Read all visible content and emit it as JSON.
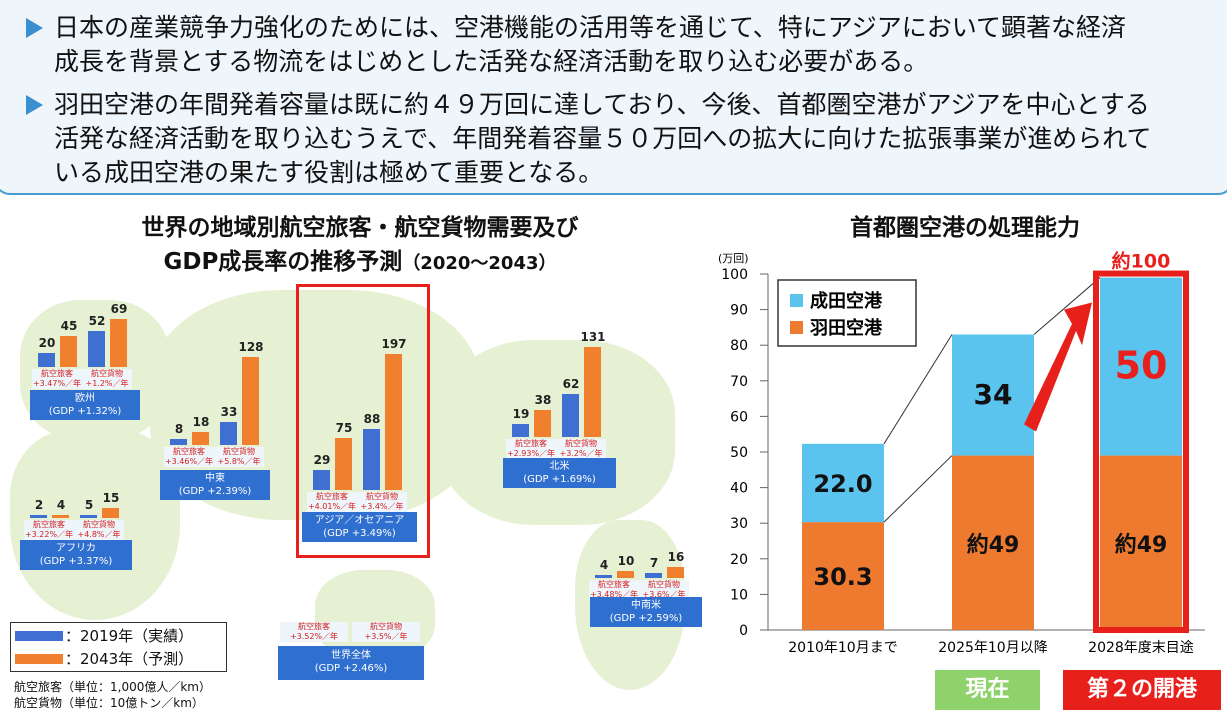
{
  "bullets": [
    {
      "lines": [
        "日本の産業競争力強化のためには、空港機能の活用等を通じて、特にアジアにおいて顕著な経済",
        "成長を背景とする物流をはじめとした活発な経済活動を取り込む必要がある。"
      ]
    },
    {
      "lines": [
        "羽田空港の年間発着容量は既に約４９万回に達しており、今後、首都圏空港がアジアを中心とする",
        "活発な経済活動を取り込むうえで、年間発着容量５０万回への拡大に向けた拡張事業が進められて",
        "いる成田空港の果たす役割は極めて重要となる。"
      ]
    }
  ],
  "colors": {
    "blue": "#3f6fd1",
    "orange": "#f07f2e",
    "narita": "#5bc4ee",
    "haneda": "#ed7a2f",
    "red": "#e8201c",
    "green": "#8fd16a"
  },
  "chart_data": [
    {
      "type": "bar",
      "title": "世界の地域別航空旅客・航空貨物需要及び",
      "title2": "GDP成長率の推移予測",
      "title_range": "（2020〜2043）",
      "legend": [
        {
          "name": "：2019年（実績）",
          "color": "#3f6fd1"
        },
        {
          "name": "：2043年（予測）",
          "color": "#f07f2e"
        }
      ],
      "notes": [
        "航空旅客（単位：1,000億人／km）",
        "航空貨物（単位：10億トン／km）"
      ],
      "regions": [
        {
          "name": "欧州",
          "gdp": "(GDP +1.32%)",
          "passenger": {
            "2019": 20,
            "2043": 45,
            "rate": "航空旅客\n+3.47%／年"
          },
          "cargo": {
            "2019": 52,
            "2043": 69,
            "rate": "航空貨物\n+1.2%／年"
          }
        },
        {
          "name": "中東",
          "gdp": "(GDP +2.39%)",
          "passenger": {
            "2019": 8,
            "2043": 18,
            "rate": "航空旅客\n+3.46%／年"
          },
          "cargo": {
            "2019": 33,
            "2043": 128,
            "rate": "航空貨物\n+5.8%／年"
          }
        },
        {
          "name": "アジア／オセアニア",
          "gdp": "(GDP +3.49%)",
          "passenger": {
            "2019": 29,
            "2043": 75,
            "rate": "航空旅客\n+4.01%／年"
          },
          "cargo": {
            "2019": 88,
            "2043": 197,
            "rate": "航空貨物\n+3.4%／年"
          }
        },
        {
          "name": "北米",
          "gdp": "(GDP +1.69%)",
          "passenger": {
            "2019": 19,
            "2043": 38,
            "rate": "航空旅客\n+2.93%／年"
          },
          "cargo": {
            "2019": 62,
            "2043": 131,
            "rate": "航空貨物\n+3.2%／年"
          }
        },
        {
          "name": "アフリカ",
          "gdp": "(GDP +3.37%)",
          "passenger": {
            "2019": 2,
            "2043": 4,
            "rate": "航空旅客\n+3.22%／年"
          },
          "cargo": {
            "2019": 5,
            "2043": 15,
            "rate": "航空貨物\n+4.8%／年"
          }
        },
        {
          "name": "中南米",
          "gdp": "(GDP +2.59%)",
          "passenger": {
            "2019": 4,
            "2043": 10,
            "rate": "航空旅客\n+3.48%／年"
          },
          "cargo": {
            "2019": 7,
            "2043": 16,
            "rate": "航空貨物\n+3.6%／年"
          }
        }
      ],
      "world": {
        "name": "世界全体",
        "gdp": "(GDP +2.46%)",
        "passenger_rate": "航空旅客\n+3.52%／年",
        "cargo_rate": "航空貨物\n+3.5%／年"
      }
    },
    {
      "type": "bar",
      "stacked": true,
      "title": "首都圏空港の処理能力",
      "yunit": "(万回)",
      "ylim": [
        0,
        100
      ],
      "yticks": [
        0,
        10,
        20,
        30,
        40,
        50,
        60,
        70,
        80,
        90,
        100
      ],
      "categories": [
        "2010年10月まで",
        "2025年10月以降",
        "2028年度末目途"
      ],
      "series": [
        {
          "name": "羽田空港",
          "values": [
            30.3,
            49,
            49
          ],
          "labels": [
            "30.3",
            "約49",
            "約49"
          ]
        },
        {
          "name": "成田空港",
          "values": [
            22.0,
            34,
            50
          ],
          "labels": [
            "22.0",
            "34",
            "50"
          ]
        }
      ],
      "total_label": "約100",
      "tags": [
        {
          "text": "現在",
          "category": "2025年10月以降"
        },
        {
          "text": "第２の開港",
          "category": "2028年度末目途"
        }
      ]
    }
  ]
}
